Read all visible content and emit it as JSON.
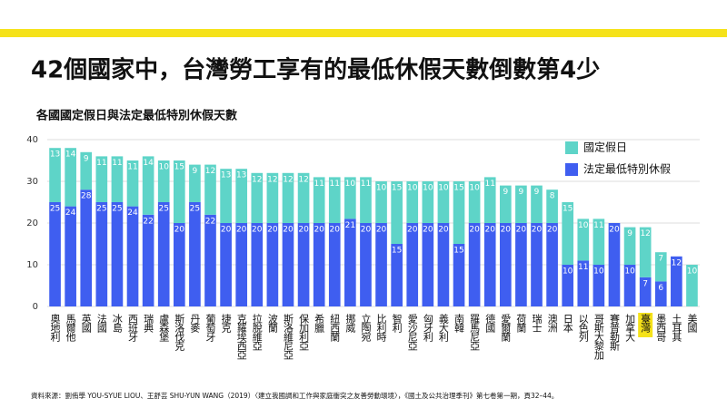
{
  "chart_data": {
    "type": "stacked_bar",
    "title": "42個國家中，台灣勞工享有的最低休假天數倒數第4少",
    "subtitle": "各國國定假日與法定最低特別休假天數",
    "source": "資料來源：劉侑學 YOU-SYUE LIOU、王舒芸 SHU-YUN WANG（2019）〈建立我國調和工作與家庭衝突之友善勞動環境〉，《國土及公共治理季刊》第七卷第一期，頁32–44。",
    "categories": [
      "奧地利",
      "馬爾他",
      "英國",
      "法國",
      "冰島",
      "西班牙",
      "瑞典",
      "盧森堡",
      "斯洛伐克",
      "丹麥",
      "葡萄牙",
      "捷克",
      "克羅埃西亞",
      "拉脫維亞",
      "波蘭",
      "斯洛維尼亞",
      "保加利亞",
      "希臘",
      "紐西蘭",
      "挪威",
      "立陶宛",
      "比利時",
      "智利",
      "愛沙尼亞",
      "匈牙利",
      "義大利",
      "南韓",
      "羅馬尼亞",
      "德國",
      "愛爾蘭",
      "荷蘭",
      "瑞士",
      "澳洲",
      "日本",
      "以色列",
      "哥斯大黎加",
      "賽普勒斯",
      "加拿大",
      "臺灣",
      "墨西哥",
      "土耳其",
      "美國"
    ],
    "series": [
      {
        "name": "法定最低特別休假",
        "color": "#3f5ef0",
        "values": [
          25,
          24,
          28,
          25,
          25,
          24,
          22,
          25,
          20,
          25,
          22,
          20,
          20,
          20,
          20,
          20,
          20,
          20,
          20,
          21,
          20,
          20,
          15,
          20,
          20,
          20,
          15,
          20,
          20,
          20,
          20,
          20,
          20,
          10,
          11,
          10,
          20,
          10,
          7,
          6,
          12,
          null
        ]
      },
      {
        "name": "國定假日",
        "color": "#5ed4c8",
        "values": [
          13,
          14,
          9,
          11,
          11,
          11,
          14,
          10,
          15,
          9,
          12,
          13,
          13,
          12,
          12,
          12,
          12,
          11,
          11,
          10,
          11,
          10,
          15,
          10,
          10,
          10,
          15,
          10,
          11,
          9,
          9,
          9,
          8,
          15,
          10,
          11,
          null,
          9,
          12,
          7,
          null,
          10
        ]
      }
    ],
    "ylim": [
      0,
      40
    ],
    "yticks": [
      0,
      10,
      20,
      30,
      40
    ],
    "grid": true,
    "legend": "upper right",
    "highlight": {
      "category_index": 38,
      "color": "#f5e21a"
    }
  }
}
